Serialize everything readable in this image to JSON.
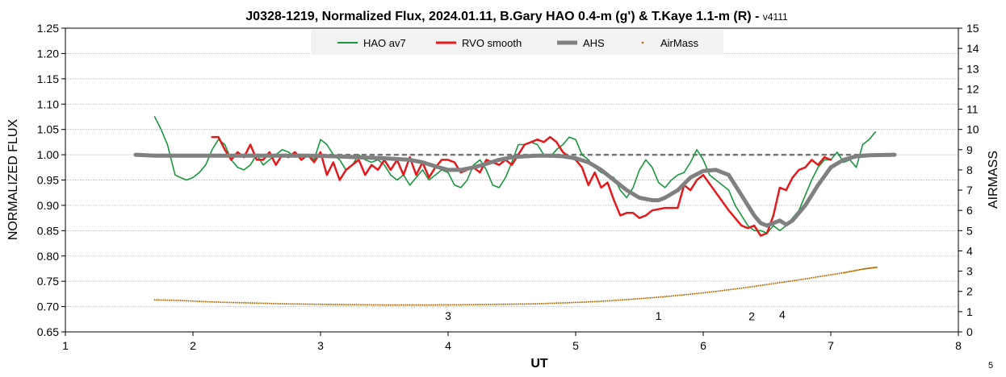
{
  "chart_data": {
    "type": "line",
    "title": "J0328-1219, Normalized Flux, 2024.01.11, B.Gary HAO 0.4-m (g') & T.Kaye 1.1-m (R) - ",
    "title_suffix": "v4111",
    "xlabel": "UT",
    "ylabel": "NORMALIZED FLUX",
    "y2label": "AIRMASS",
    "xlim": [
      1,
      8
    ],
    "ylim": [
      0.65,
      1.25
    ],
    "y2lim": [
      0,
      15
    ],
    "xticks": [
      "1",
      "2",
      "3",
      "4",
      "5",
      "6",
      "7",
      "8"
    ],
    "yticks": [
      "0.65",
      "0.70",
      "0.75",
      "0.80",
      "0.85",
      "0.90",
      "0.95",
      "1.00",
      "1.05",
      "1.10",
      "1.15",
      "1.20",
      "1.25"
    ],
    "y2ticks": [
      "0",
      "1",
      "2",
      "3",
      "4",
      "5",
      "6",
      "7",
      "8",
      "9",
      "10",
      "11",
      "12",
      "13",
      "14",
      "15"
    ],
    "grid": true,
    "legend_position": "top-center",
    "reference_line": {
      "y": 1.0,
      "color": "#777777",
      "style": "dashed"
    },
    "corner_label": "5",
    "annotations": [
      {
        "text": "3",
        "x": 4.0,
        "y": 0.674
      },
      {
        "text": "1",
        "x": 5.65,
        "y": 0.674
      },
      {
        "text": "2",
        "x": 6.38,
        "y": 0.673
      },
      {
        "text": "4",
        "x": 6.62,
        "y": 0.676
      }
    ],
    "series": [
      {
        "name": "HAO av7",
        "color": "#1a9641",
        "style": "line",
        "x": [
          1.7,
          1.75,
          1.8,
          1.83,
          1.86,
          1.9,
          1.95,
          2.0,
          2.05,
          2.1,
          2.15,
          2.2,
          2.25,
          2.3,
          2.35,
          2.4,
          2.45,
          2.5,
          2.55,
          2.6,
          2.65,
          2.7,
          2.75,
          2.8,
          2.85,
          2.9,
          2.95,
          3.0,
          3.05,
          3.1,
          3.15,
          3.2,
          3.25,
          3.3,
          3.35,
          3.4,
          3.45,
          3.5,
          3.55,
          3.6,
          3.65,
          3.7,
          3.75,
          3.8,
          3.85,
          3.9,
          3.95,
          4.0,
          4.05,
          4.1,
          4.15,
          4.2,
          4.25,
          4.3,
          4.35,
          4.4,
          4.45,
          4.5,
          4.55,
          4.6,
          4.65,
          4.7,
          4.75,
          4.8,
          4.85,
          4.9,
          4.95,
          5.0,
          5.05,
          5.1,
          5.15,
          5.2,
          5.25,
          5.3,
          5.35,
          5.4,
          5.45,
          5.5,
          5.55,
          5.6,
          5.65,
          5.7,
          5.75,
          5.8,
          5.85,
          5.9,
          5.95,
          6.0,
          6.05,
          6.1,
          6.15,
          6.2,
          6.25,
          6.3,
          6.35,
          6.4,
          6.45,
          6.5,
          6.55,
          6.6,
          6.65,
          6.7,
          6.75,
          6.8,
          6.85,
          6.9,
          6.95,
          7.0,
          7.05,
          7.1,
          7.15,
          7.2,
          7.25,
          7.3,
          7.35
        ],
        "y": [
          1.075,
          1.05,
          1.02,
          0.99,
          0.96,
          0.955,
          0.95,
          0.955,
          0.965,
          0.98,
          1.01,
          1.03,
          1.02,
          0.99,
          0.975,
          0.97,
          0.98,
          1.0,
          0.98,
          0.99,
          1.0,
          1.01,
          1.005,
          0.995,
          1.0,
          1.0,
          0.99,
          1.03,
          1.02,
          1.0,
          0.99,
          0.97,
          0.98,
          1.0,
          0.99,
          0.985,
          0.99,
          0.98,
          0.96,
          0.95,
          0.96,
          0.94,
          0.955,
          0.97,
          0.95,
          0.96,
          0.97,
          0.965,
          0.94,
          0.935,
          0.95,
          0.98,
          0.99,
          0.97,
          0.94,
          0.935,
          0.955,
          0.985,
          1.02,
          1.02,
          1.025,
          1.02,
          1.0,
          0.995,
          1.01,
          1.02,
          1.035,
          1.03,
          1.0,
          0.99,
          0.975,
          0.965,
          0.96,
          0.955,
          0.93,
          0.915,
          0.935,
          0.97,
          0.99,
          0.975,
          0.945,
          0.935,
          0.95,
          0.96,
          0.965,
          0.985,
          1.01,
          0.99,
          0.96,
          0.95,
          0.94,
          0.93,
          0.9,
          0.88,
          0.86,
          0.85,
          0.85,
          0.845,
          0.86,
          0.85,
          0.86,
          0.875,
          0.89,
          0.92,
          0.95,
          0.975,
          0.99,
          0.99,
          1.005,
          0.985,
          0.99,
          0.975,
          1.02,
          1.03,
          1.045
        ]
      },
      {
        "name": "RVO smooth",
        "color": "#e31a1c",
        "style": "line",
        "x": [
          2.15,
          2.2,
          2.25,
          2.3,
          2.35,
          2.4,
          2.45,
          2.5,
          2.55,
          2.6,
          2.65,
          2.7,
          2.75,
          2.8,
          2.85,
          2.9,
          2.95,
          3.0,
          3.05,
          3.1,
          3.15,
          3.2,
          3.25,
          3.3,
          3.35,
          3.4,
          3.45,
          3.5,
          3.55,
          3.6,
          3.65,
          3.7,
          3.75,
          3.8,
          3.85,
          3.9,
          3.95,
          4.0,
          4.05,
          4.1,
          4.15,
          4.2,
          4.25,
          4.3,
          4.35,
          4.4,
          4.45,
          4.5,
          4.55,
          4.6,
          4.65,
          4.7,
          4.75,
          4.8,
          4.85,
          4.9,
          4.95,
          5.0,
          5.05,
          5.1,
          5.15,
          5.2,
          5.25,
          5.3,
          5.35,
          5.4,
          5.45,
          5.5,
          5.55,
          5.6,
          5.7,
          5.8,
          5.85,
          5.9,
          5.95,
          6.0,
          6.1,
          6.2,
          6.3,
          6.35,
          6.4,
          6.45,
          6.5,
          6.55,
          6.6,
          6.65,
          6.7,
          6.75,
          6.8,
          6.85,
          6.9,
          6.95,
          7.0
        ],
        "y": [
          1.035,
          1.035,
          1.01,
          0.99,
          1.005,
          0.995,
          1.02,
          0.99,
          0.99,
          1.005,
          0.98,
          1.0,
          0.995,
          1.005,
          0.99,
          1.0,
          0.985,
          1.005,
          0.96,
          0.985,
          0.95,
          0.97,
          0.98,
          0.99,
          0.96,
          0.98,
          0.97,
          0.99,
          0.97,
          0.99,
          0.96,
          0.995,
          0.96,
          0.985,
          0.955,
          0.975,
          0.99,
          0.99,
          0.985,
          0.965,
          0.97,
          0.975,
          0.965,
          0.99,
          0.985,
          0.98,
          0.99,
          0.98,
          1.0,
          1.02,
          1.025,
          1.03,
          1.025,
          1.035,
          1.025,
          1.005,
          0.995,
          0.99,
          0.975,
          0.94,
          0.965,
          0.935,
          0.945,
          0.91,
          0.88,
          0.885,
          0.885,
          0.875,
          0.88,
          0.89,
          0.895,
          0.895,
          0.94,
          0.93,
          0.95,
          0.96,
          0.925,
          0.89,
          0.86,
          0.855,
          0.86,
          0.84,
          0.845,
          0.88,
          0.935,
          0.93,
          0.955,
          0.97,
          0.975,
          0.99,
          0.98,
          0.995,
          0.99
        ]
      },
      {
        "name": "AHS",
        "color": "#808080",
        "style": "thick-line",
        "x": [
          1.55,
          1.7,
          1.9,
          2.1,
          2.3,
          2.5,
          2.7,
          2.9,
          3.1,
          3.3,
          3.5,
          3.7,
          3.8,
          3.9,
          4.0,
          4.1,
          4.2,
          4.3,
          4.4,
          4.5,
          4.6,
          4.7,
          4.8,
          4.9,
          5.0,
          5.1,
          5.2,
          5.3,
          5.4,
          5.5,
          5.6,
          5.65,
          5.7,
          5.8,
          5.9,
          6.0,
          6.1,
          6.2,
          6.3,
          6.4,
          6.45,
          6.5,
          6.6,
          6.65,
          6.7,
          6.8,
          6.9,
          7.0,
          7.1,
          7.2,
          7.3,
          7.5
        ],
        "y": [
          1.0,
          0.998,
          0.998,
          0.998,
          0.998,
          0.998,
          0.998,
          0.998,
          0.997,
          0.995,
          0.993,
          0.99,
          0.985,
          0.977,
          0.97,
          0.97,
          0.975,
          0.982,
          0.99,
          0.995,
          0.997,
          0.998,
          0.998,
          0.997,
          0.993,
          0.985,
          0.97,
          0.95,
          0.93,
          0.915,
          0.91,
          0.91,
          0.915,
          0.93,
          0.955,
          0.968,
          0.97,
          0.96,
          0.92,
          0.88,
          0.865,
          0.86,
          0.87,
          0.862,
          0.87,
          0.9,
          0.94,
          0.975,
          0.99,
          0.997,
          0.999,
          1.0
        ]
      },
      {
        "name": "AirMass",
        "color": "#b36b00",
        "style": "dots",
        "axis": "y2",
        "x": [
          1.7,
          1.9,
          2.1,
          2.3,
          2.5,
          2.7,
          2.9,
          3.1,
          3.3,
          3.5,
          3.7,
          3.9,
          4.1,
          4.3,
          4.5,
          4.7,
          4.9,
          5.1,
          5.3,
          5.5,
          5.7,
          5.9,
          6.1,
          6.3,
          6.5,
          6.7,
          6.9,
          7.1,
          7.25,
          7.37
        ],
        "y": [
          1.58,
          1.55,
          1.49,
          1.45,
          1.42,
          1.39,
          1.37,
          1.35,
          1.34,
          1.33,
          1.33,
          1.33,
          1.34,
          1.35,
          1.37,
          1.39,
          1.43,
          1.48,
          1.55,
          1.64,
          1.74,
          1.86,
          2.0,
          2.16,
          2.34,
          2.52,
          2.72,
          2.92,
          3.1,
          3.2
        ]
      }
    ]
  }
}
